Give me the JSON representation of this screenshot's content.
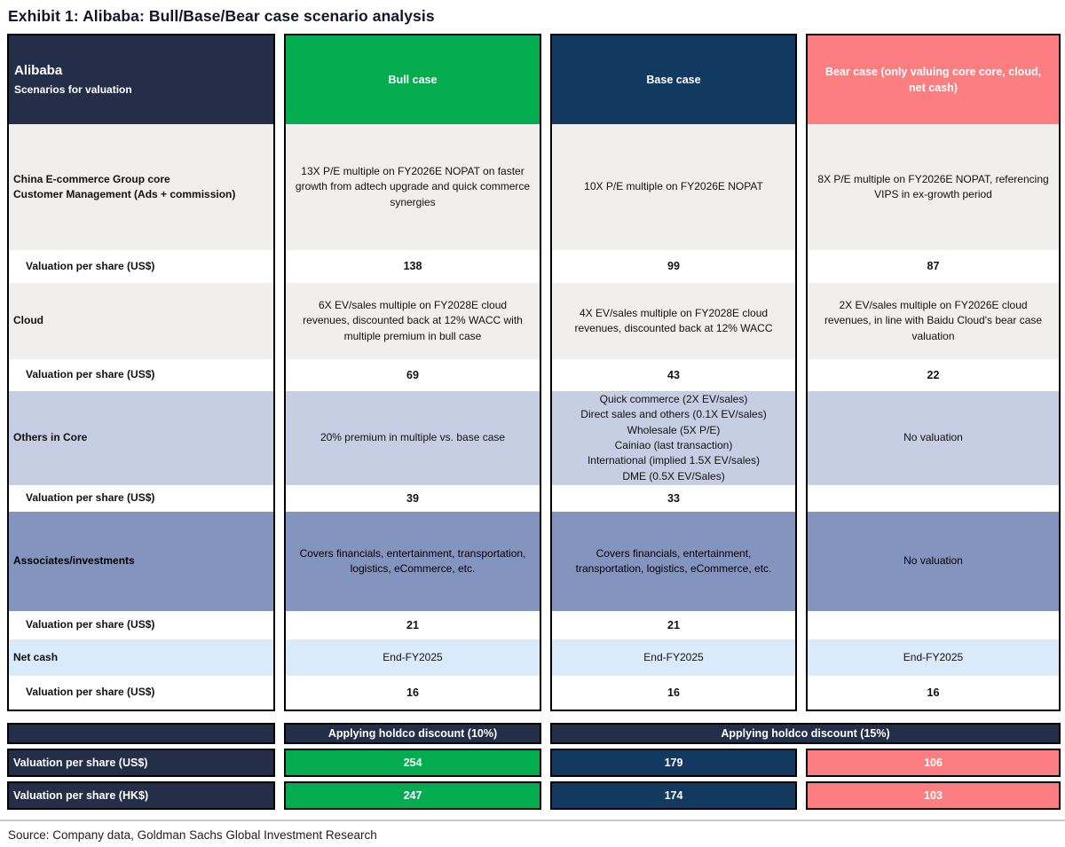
{
  "title": "Exhibit 1: Alibaba: Bull/Base/Bear case scenario analysis",
  "source": "Source: Company data, Goldman Sachs Global Investment Research",
  "colors": {
    "bull_green": "#04ac50",
    "base_navy": "#123a60",
    "bear_pink": "#fc7e81",
    "header_navy": "#242e48",
    "row_gray": "#f0efed",
    "row_periwinkle": "#c5cee2",
    "row_periwinkle_dark": "#8394bf",
    "row_light_blue": "#d9eafa"
  },
  "table": {
    "header": {
      "label_title": "Alibaba",
      "label_subtitle": "Scenarios for valuation",
      "bull": "Bull case",
      "base": "Base case",
      "bear": "Bear case (only valuing core core, cloud, net cash)"
    },
    "sections": [
      {
        "label": "China E-commerce Group core",
        "label_sub": "Customer Management (Ads + commission)",
        "bull": "13X P/E multiple on FY2026E NOPAT on faster growth from adtech upgrade and quick commerce synergies",
        "base": "10X P/E multiple on FY2026E NOPAT",
        "bear": "8X P/E multiple on FY2026E NOPAT, referencing VIPS in ex-growth period",
        "val_label": "Valuation per share (US$)",
        "bull_val": "138",
        "base_val": "99",
        "bear_val": "87"
      },
      {
        "label": "Cloud",
        "bull": "6X EV/sales multiple on FY2028E cloud revenues, discounted back at 12% WACC with multiple premium in bull case",
        "base": "4X EV/sales multiple on FY2028E cloud revenues, discounted back at 12% WACC",
        "bear": "2X EV/sales multiple on FY2026E cloud revenues, in line with Baidu Cloud's bear case valuation",
        "val_label": "Valuation per share (US$)",
        "bull_val": "69",
        "base_val": "43",
        "bear_val": "22"
      },
      {
        "label": "Others in Core",
        "bull": "20% premium in multiple vs. base case",
        "base": "Quick commerce (2X EV/sales)\nDirect sales and others (0.1X EV/sales)\nWholesale (5X P/E)\nCainiao (last transaction)\nInternational (implied 1.5X EV/sales)\nDME (0.5X EV/Sales)",
        "bear": "No valuation",
        "val_label": "Valuation per share (US$)",
        "bull_val": "39",
        "base_val": "33",
        "bear_val": ""
      },
      {
        "label": "Associates/investments",
        "bull": "Covers financials, entertainment, transportation, logistics, eCommerce, etc.",
        "base": "Covers financials, entertainment, transportation, logistics, eCommerce, etc.",
        "bear": "No valuation",
        "val_label": "Valuation per share (US$)",
        "bull_val": "21",
        "base_val": "21",
        "bear_val": ""
      },
      {
        "label": "Net cash",
        "bull": "End-FY2025",
        "base": "End-FY2025",
        "bear": "End-FY2025",
        "val_label": "Valuation per share (US$)",
        "bull_val": "16",
        "base_val": "16",
        "bear_val": "16"
      }
    ],
    "holdco": {
      "bull_band": "Applying holdco discount (10%)",
      "basebear_band": "Applying holdco discount (15%)",
      "rows": [
        {
          "label": "Valuation per share (US$)",
          "bull": "254",
          "base": "179",
          "bear": "106"
        },
        {
          "label": "Valuation per share (HK$)",
          "bull": "247",
          "base": "174",
          "bear": "103"
        }
      ]
    }
  }
}
